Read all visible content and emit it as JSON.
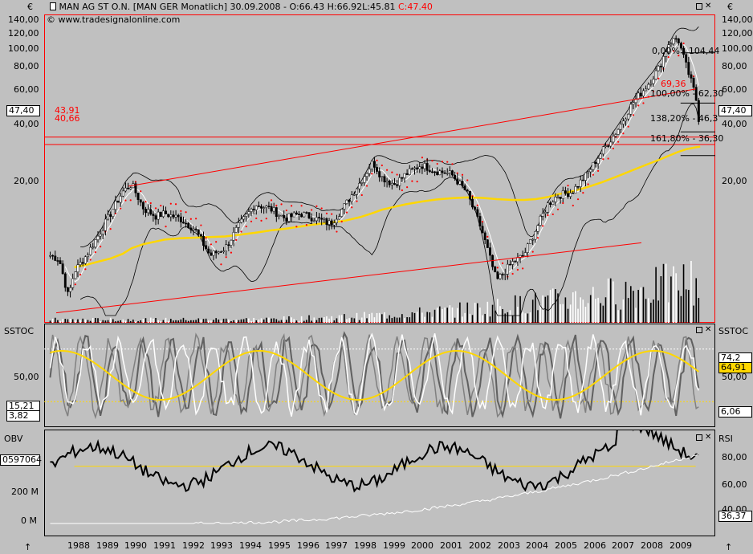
{
  "header": {
    "symbol_line": "MAN AG ST O.N. [MAN GER  Monatlich] 30.09.2008 - ",
    "open": "O:66.43",
    "high": "H:66.92",
    "low": "L:45.81",
    "close": "C:47.40",
    "website": "www.tradesignalonline.com",
    "currency": "€"
  },
  "price_axis": {
    "left_ticks": [
      "140,00",
      "120,00",
      "100,00",
      "80,00",
      "60,00",
      "40,00",
      "20,00"
    ],
    "right_ticks": [
      "140,00",
      "120,00",
      "100,00",
      "80,00",
      "60,00",
      "40,00",
      "20,00"
    ],
    "current_tag": "47,40",
    "ylim": [
      6.5,
      155
    ],
    "scale": "log"
  },
  "annotations": {
    "support_1": "43,91",
    "support_2": "40,66",
    "fibo_0": "0,00% - 104,44",
    "fibo_100": "100,00% - 62,30",
    "fibo_138": "138,20% - 46,3",
    "fibo_161": "161,80% - 36,30",
    "red_level": "69,36"
  },
  "sstoc": {
    "label": "SSTOC",
    "left_tick": "50,00",
    "right_tick": "50,00",
    "left_tag_1": "15,21",
    "left_tag_2": "3,82",
    "right_tag_1": "74,2",
    "right_tag_2": "64,91",
    "right_tag_3": "6,06"
  },
  "obv": {
    "label": "OBV",
    "rsi_label": "RSI",
    "left_ticks": [
      "200 M",
      "0 M"
    ],
    "left_tag": "0597064",
    "right_ticks": [
      "80,00",
      "60,00",
      "40,00"
    ],
    "right_tag": "36,37"
  },
  "x_axis": {
    "labels": [
      "1988",
      "1989",
      "1990",
      "1991",
      "1992",
      "1993",
      "1994",
      "1995",
      "1996",
      "1997",
      "1998",
      "1999",
      "2000",
      "2001",
      "2002",
      "2003",
      "2004",
      "2005",
      "2006",
      "2007",
      "2008",
      "2009"
    ]
  },
  "colors": {
    "background": "#c0c0c0",
    "price_line": "#000000",
    "ma_yellow": "#ffd700",
    "channel_red": "#ff0000",
    "dots_red": "#ff0000",
    "white_line": "#ffffff",
    "stoch_gray": "#606060"
  },
  "chart_data": {
    "type": "line",
    "title": "MAN AG ST O.N. [MAN GER  Monatlich] 30.09.2008",
    "x": [
      1987.2,
      1987.5,
      1987.8,
      1988.0,
      1988.4,
      1988.8,
      1989.2,
      1989.6,
      1989.9,
      1990.3,
      1990.7,
      1991.0,
      1991.5,
      1992.0,
      1992.5,
      1993.0,
      1993.5,
      1994.0,
      1994.5,
      1995.0,
      1995.5,
      1996.0,
      1996.5,
      1997.0,
      1997.5,
      1997.9,
      1998.2,
      1998.6,
      1999.0,
      1999.5,
      2000.0,
      2000.5,
      2001.0,
      2001.5,
      2002.0,
      2002.5,
      2002.9,
      2003.3,
      2003.7,
      2004.0,
      2004.5,
      2005.0,
      2005.5,
      2006.0,
      2006.5,
      2007.0,
      2007.4,
      2007.7,
      2008.0,
      2008.3,
      2008.6,
      2008.75
    ],
    "series": [
      {
        "values": [
          13,
          12.5,
          8.5,
          11,
          13,
          16,
          20,
          25,
          27,
          21,
          19.5,
          20,
          19,
          17,
          13,
          14,
          18,
          22,
          21,
          19,
          20,
          19,
          18,
          22,
          28,
          34,
          29,
          27,
          30,
          33,
          31,
          30,
          25,
          17,
          10,
          12,
          13,
          17,
          22,
          24,
          25,
          30,
          38,
          47,
          62,
          75,
          90,
          115,
          122,
          90,
          67,
          47.4
        ]
      },
      {
        "values": [
          null,
          null,
          null,
          11.5,
          11.8,
          12.2,
          12.6,
          13.2,
          14.0,
          14.6,
          15.0,
          15.3,
          15.5,
          15.6,
          15.7,
          15.8,
          16.1,
          16.4,
          16.8,
          17.1,
          17.5,
          17.9,
          18.2,
          18.6,
          19.3,
          20.1,
          20.8,
          21.4,
          22.0,
          22.6,
          23.1,
          23.4,
          23.6,
          23.5,
          23.2,
          23.0,
          23.0,
          23.2,
          23.7,
          24.3,
          25.1,
          26.2,
          27.6,
          29.3,
          31.2,
          33.2,
          34.8,
          36.2,
          37.6,
          38.8,
          39.5,
          39.8
        ]
      }
    ]
  }
}
